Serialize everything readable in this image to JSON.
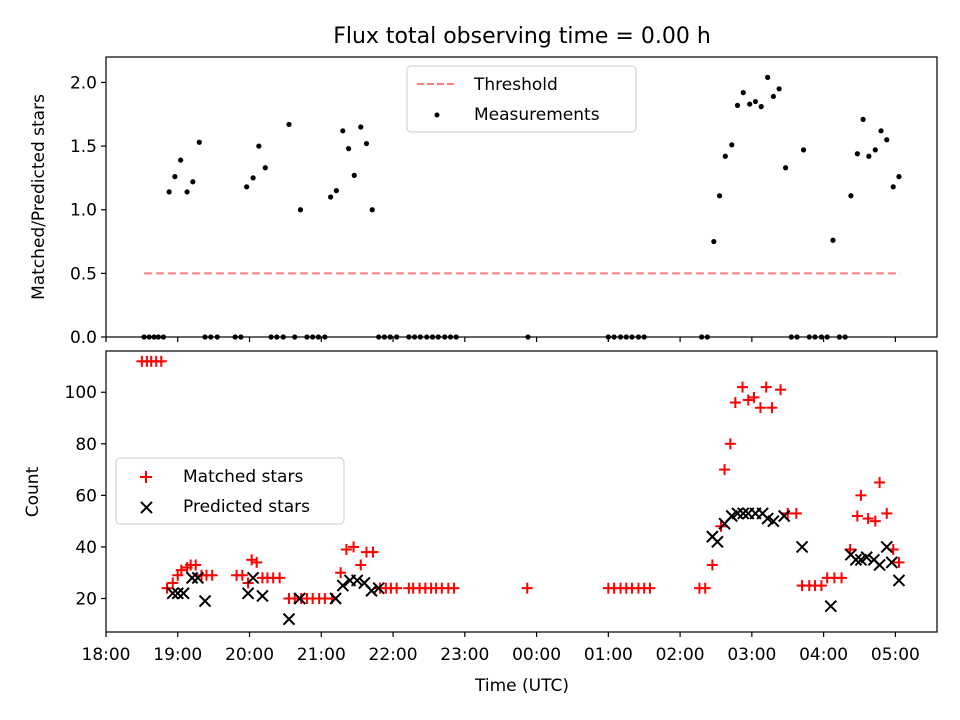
{
  "figure": {
    "title": "Flux total observing time = 0.00 h"
  },
  "chart_data": [
    {
      "type": "scatter",
      "title": "Flux total observing time = 0.00 h",
      "ylabel": "Matched/Predicted stars",
      "xlim_hours": [
        18.0,
        29.58
      ],
      "ylim": [
        0,
        2.2
      ],
      "yticks": [
        0.0,
        0.5,
        1.0,
        1.5,
        2.0
      ],
      "ytick_labels": [
        "0.0",
        "0.5",
        "1.0",
        "1.5",
        "2.0"
      ],
      "legend": {
        "position": "upper-center",
        "entries": [
          "Threshold",
          "Measurements"
        ]
      },
      "threshold": {
        "label": "Threshold",
        "value": 0.5,
        "x_range": [
          18.53,
          29.07
        ],
        "color": "#ff7f7f"
      },
      "measurements": {
        "label": "Measurements",
        "color": "#000000",
        "x": [
          18.53,
          18.6,
          18.67,
          18.73,
          18.8,
          18.88,
          18.96,
          19.04,
          19.13,
          19.21,
          19.3,
          19.38,
          19.46,
          19.55,
          19.8,
          19.88,
          19.96,
          20.05,
          20.13,
          20.22,
          20.3,
          20.38,
          20.47,
          20.55,
          20.63,
          20.71,
          20.8,
          20.88,
          20.96,
          21.05,
          21.13,
          21.21,
          21.3,
          21.38,
          21.46,
          21.55,
          21.63,
          21.71,
          21.8,
          21.88,
          21.96,
          22.05,
          22.22,
          22.3,
          22.38,
          22.47,
          22.55,
          22.63,
          22.72,
          22.8,
          22.88,
          23.88,
          25.0,
          25.08,
          25.17,
          25.25,
          25.33,
          25.42,
          25.5,
          26.3,
          26.38,
          26.47,
          26.55,
          26.63,
          26.72,
          26.8,
          26.88,
          26.97,
          27.05,
          27.13,
          27.22,
          27.3,
          27.38,
          27.47,
          27.55,
          27.63,
          27.72,
          27.8,
          27.88,
          27.97,
          28.05,
          28.13,
          28.22,
          28.3,
          28.38,
          28.47,
          28.55,
          28.63,
          28.72,
          28.8,
          28.88,
          28.97,
          29.05
        ],
        "y": [
          0,
          0,
          0,
          0,
          0,
          1.14,
          1.26,
          1.39,
          1.14,
          1.22,
          1.53,
          0,
          0,
          0,
          0,
          0,
          1.18,
          1.25,
          1.5,
          1.33,
          0,
          0,
          0,
          1.67,
          0,
          1.0,
          0,
          0,
          0,
          0,
          1.1,
          1.15,
          1.62,
          1.48,
          1.27,
          1.65,
          1.52,
          1.0,
          0,
          0,
          0,
          0,
          0,
          0,
          0,
          0,
          0,
          0,
          0,
          0,
          0,
          0,
          0,
          0,
          0,
          0,
          0,
          0,
          0,
          0,
          0,
          0.75,
          1.11,
          1.42,
          1.51,
          1.82,
          1.92,
          1.83,
          1.85,
          1.81,
          2.04,
          1.89,
          1.95,
          1.33,
          0,
          0,
          1.47,
          0,
          0,
          0,
          0,
          0.76,
          0,
          0,
          1.11,
          1.44,
          1.71,
          1.42,
          1.47,
          1.62,
          1.55,
          1.18,
          1.26
        ]
      }
    },
    {
      "type": "scatter",
      "xlabel": "Time (UTC)",
      "ylabel": "Count",
      "xlim_hours": [
        18.0,
        29.58
      ],
      "ylim": [
        7,
        116
      ],
      "yticks": [
        20,
        40,
        60,
        80,
        100
      ],
      "ytick_labels": [
        "20",
        "40",
        "60",
        "80",
        "100"
      ],
      "xticks_hours": [
        18,
        19,
        20,
        21,
        22,
        23,
        24,
        25,
        26,
        27,
        28,
        29
      ],
      "xtick_labels": [
        "18:00",
        "19:00",
        "20:00",
        "21:00",
        "22:00",
        "23:00",
        "00:00",
        "01:00",
        "02:00",
        "03:00",
        "04:00",
        "05:00"
      ],
      "legend": {
        "position": "center-left",
        "entries": [
          "Matched stars",
          "Predicted stars"
        ]
      },
      "series": [
        {
          "name": "Matched stars",
          "marker": "+",
          "color": "#ff0000",
          "x": [
            18.5,
            18.57,
            18.63,
            18.7,
            18.77,
            18.85,
            18.93,
            19.0,
            19.05,
            19.13,
            19.18,
            19.25,
            19.33,
            19.4,
            19.48,
            19.82,
            19.9,
            19.98,
            20.03,
            20.1,
            20.18,
            20.25,
            20.33,
            20.42,
            20.55,
            20.63,
            20.72,
            20.8,
            20.88,
            20.97,
            21.05,
            21.15,
            21.27,
            21.35,
            21.45,
            21.55,
            21.63,
            21.72,
            21.82,
            21.9,
            21.97,
            22.05,
            22.22,
            22.28,
            22.37,
            22.45,
            22.53,
            22.6,
            22.68,
            22.77,
            22.85,
            23.87,
            25.0,
            25.08,
            25.17,
            25.25,
            25.33,
            25.42,
            25.5,
            25.58,
            26.27,
            26.35,
            26.45,
            26.57,
            26.62,
            26.7,
            26.77,
            26.87,
            26.95,
            27.03,
            27.12,
            27.2,
            27.28,
            27.4,
            27.5,
            27.62,
            27.7,
            27.8,
            27.88,
            27.97,
            28.05,
            28.15,
            28.25,
            28.37,
            28.47,
            28.52,
            28.62,
            28.72,
            28.78,
            28.88,
            28.97,
            29.05
          ],
          "y": [
            112,
            112,
            112,
            112,
            112,
            24,
            26,
            29,
            31,
            32,
            33,
            33,
            29,
            29,
            29,
            29,
            29,
            26,
            35,
            34,
            28,
            28,
            28,
            28,
            20,
            20,
            20,
            20,
            20,
            20,
            20,
            20,
            30,
            39,
            40,
            33,
            38,
            38,
            24,
            24,
            24,
            24,
            24,
            24,
            24,
            24,
            24,
            24,
            24,
            24,
            24,
            24,
            24,
            24,
            24,
            24,
            24,
            24,
            24,
            24,
            24,
            24,
            33,
            48,
            70,
            80,
            96,
            102,
            97,
            98,
            94,
            102,
            94,
            101,
            53,
            53,
            25,
            25,
            25,
            25,
            28,
            28,
            28,
            39,
            52,
            60,
            51,
            50,
            65,
            53,
            39,
            34
          ]
        },
        {
          "name": "Predicted stars",
          "marker": "x",
          "color": "#000000",
          "x": [
            18.93,
            19.0,
            19.08,
            19.2,
            19.28,
            19.38,
            19.98,
            20.05,
            20.18,
            20.55,
            20.7,
            21.2,
            21.3,
            21.4,
            21.5,
            21.6,
            21.7,
            21.8,
            26.45,
            26.52,
            26.62,
            26.72,
            26.8,
            26.88,
            26.95,
            27.05,
            27.15,
            27.22,
            27.3,
            27.45,
            27.7,
            28.1,
            28.38,
            28.45,
            28.52,
            28.6,
            28.7,
            28.78,
            28.88,
            28.95,
            29.05
          ],
          "y": [
            22,
            22,
            22,
            28,
            28,
            19,
            22,
            28,
            21,
            12,
            20,
            20,
            25,
            27,
            27,
            26,
            23,
            24,
            44,
            42,
            49,
            52,
            53,
            53,
            53,
            53,
            53,
            51,
            50,
            52,
            40,
            17,
            37,
            35,
            35,
            36,
            35,
            33,
            40,
            34,
            27
          ]
        }
      ]
    }
  ]
}
